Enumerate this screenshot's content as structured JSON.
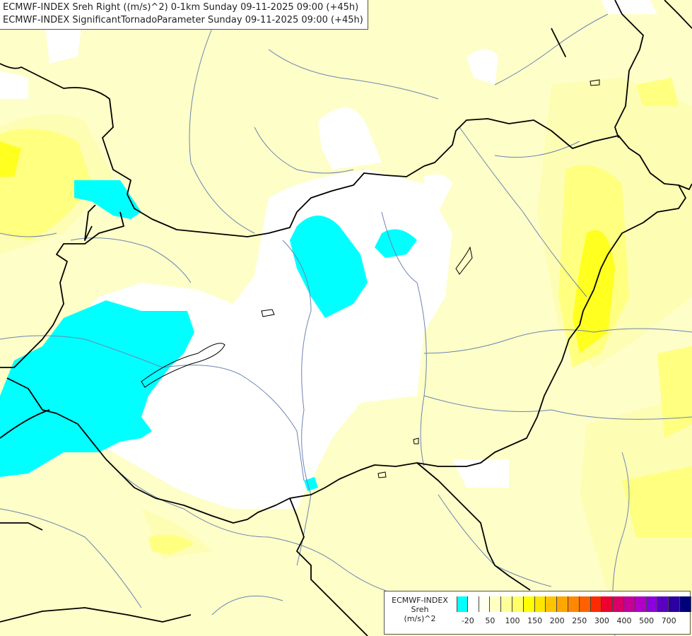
{
  "title": {
    "line1": "ECMWF-INDEX Sreh Right ((m/s)^2) 0-1km Sunday 09-11-2025 09:00 (+45h)",
    "line2": "ECMWF-INDEX SignificantTornadoParameter Sunday 09-11-2025 09:00 (+45h)"
  },
  "legend": {
    "line1": "ECMWF-INDEX",
    "line2": "Sreh",
    "line3": "(m/s)^2",
    "colors": [
      "#00ffff",
      "#ffffff",
      "#fffff0",
      "#ffffc4",
      "#ffff9a",
      "#ffff66",
      "#ffff00",
      "#ffe600",
      "#ffc400",
      "#ffa600",
      "#ff8800",
      "#ff6000",
      "#ff2a00",
      "#ee0030",
      "#d80068",
      "#c40098",
      "#b000c8",
      "#8a00e0",
      "#5a00c0",
      "#2a00a0",
      "#00007a"
    ],
    "ticks": [
      "-20",
      "50",
      "100",
      "150",
      "200",
      "250",
      "300",
      "400",
      "500",
      "700"
    ]
  },
  "colors": {
    "low": "#00ffff",
    "near_zero": "#ffffff",
    "background": "#fefec8",
    "mid": "#ffff9a",
    "high": "#ffff00",
    "border": "#000000",
    "river": "#6c84b0"
  }
}
